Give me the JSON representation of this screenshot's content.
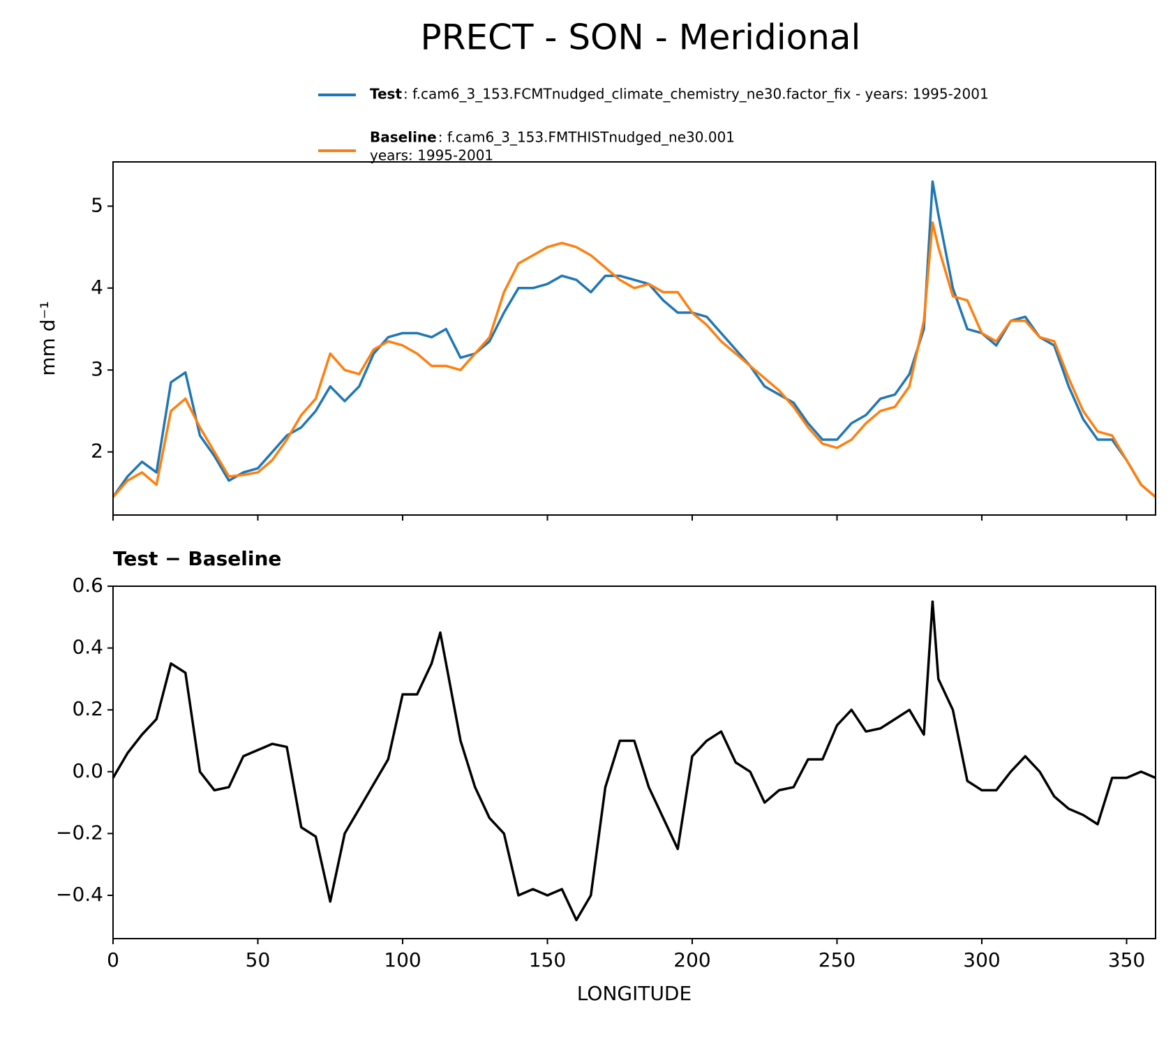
{
  "title": "PRECT - SON - Meridional",
  "chart_data": [
    {
      "type": "line",
      "ylabel": "mm d⁻¹",
      "xlim": [
        0,
        360
      ],
      "xticks": [
        0,
        50,
        100,
        150,
        200,
        250,
        300,
        350
      ],
      "ylim": [
        1.23,
        5.54
      ],
      "yticks": [
        2,
        3,
        4,
        5
      ],
      "legend": "top",
      "x": [
        0,
        5,
        10,
        15,
        20,
        25,
        30,
        35,
        40,
        45,
        50,
        55,
        60,
        65,
        70,
        75,
        80,
        85,
        90,
        95,
        100,
        105,
        110,
        115,
        120,
        125,
        130,
        135,
        140,
        145,
        150,
        155,
        160,
        165,
        170,
        175,
        180,
        185,
        190,
        195,
        200,
        205,
        210,
        215,
        220,
        225,
        230,
        235,
        240,
        245,
        250,
        255,
        260,
        265,
        270,
        275,
        280,
        283,
        285,
        290,
        295,
        300,
        305,
        310,
        315,
        320,
        325,
        330,
        335,
        340,
        345,
        350,
        355,
        360
      ],
      "series": [
        {
          "name": "Test",
          "label": [
            ": f.cam6_3_153.FCMTnudged_climate_chemistry_ne30.factor_fix - years: 1995-2001"
          ],
          "color": "#1f77b4",
          "values": [
            1.45,
            1.7,
            1.88,
            1.75,
            2.85,
            2.97,
            2.2,
            1.95,
            1.65,
            1.75,
            1.8,
            2.0,
            2.2,
            2.3,
            2.5,
            2.8,
            2.62,
            2.8,
            3.2,
            3.4,
            3.45,
            3.45,
            3.4,
            3.5,
            3.15,
            3.2,
            3.35,
            3.7,
            4.0,
            4.0,
            4.05,
            4.15,
            4.1,
            3.95,
            4.15,
            4.15,
            4.1,
            4.05,
            3.85,
            3.7,
            3.7,
            3.65,
            3.45,
            3.25,
            3.05,
            2.8,
            2.7,
            2.6,
            2.35,
            2.15,
            2.15,
            2.35,
            2.45,
            2.65,
            2.7,
            2.95,
            3.5,
            5.3,
            4.9,
            4.0,
            3.5,
            3.45,
            3.3,
            3.6,
            3.65,
            3.4,
            3.3,
            2.8,
            2.4,
            2.15,
            2.15,
            1.9,
            1.6,
            1.45
          ]
        },
        {
          "name": "Baseline",
          "label": [
            ": f.cam6_3_153.FMTHISTnudged_ne30.001",
            "years: 1995-2001"
          ],
          "color": "#ff7f0e",
          "values": [
            1.45,
            1.65,
            1.75,
            1.6,
            2.5,
            2.65,
            2.3,
            2.0,
            1.7,
            1.72,
            1.75,
            1.9,
            2.15,
            2.45,
            2.65,
            3.2,
            3.0,
            2.95,
            3.25,
            3.35,
            3.3,
            3.2,
            3.05,
            3.05,
            3.0,
            3.2,
            3.4,
            3.95,
            4.3,
            4.4,
            4.5,
            4.55,
            4.5,
            4.4,
            4.25,
            4.1,
            4.0,
            4.05,
            3.95,
            3.95,
            3.7,
            3.55,
            3.35,
            3.2,
            3.05,
            2.9,
            2.75,
            2.55,
            2.3,
            2.1,
            2.05,
            2.15,
            2.35,
            2.5,
            2.55,
            2.8,
            3.6,
            4.8,
            4.5,
            3.9,
            3.85,
            3.45,
            3.35,
            3.6,
            3.6,
            3.4,
            3.35,
            2.9,
            2.5,
            2.25,
            2.2,
            1.9,
            1.6,
            1.45
          ]
        }
      ]
    },
    {
      "type": "line",
      "title": "Test − Baseline",
      "xlabel": "LONGITUDE",
      "xlim": [
        0,
        360
      ],
      "xticks": [
        0,
        50,
        100,
        150,
        200,
        250,
        300,
        350
      ],
      "ylim": [
        -0.54,
        0.6
      ],
      "yticks": [
        {
          "value": -0.4,
          "label": "−0.4"
        },
        {
          "value": -0.2,
          "label": "−0.2"
        },
        {
          "value": 0,
          "label": "0.0"
        },
        0.2,
        0.4,
        0.6
      ],
      "x": [
        0,
        5,
        10,
        15,
        20,
        25,
        30,
        35,
        40,
        45,
        50,
        55,
        60,
        65,
        70,
        75,
        80,
        85,
        90,
        95,
        100,
        105,
        110,
        113,
        115,
        120,
        125,
        130,
        135,
        140,
        145,
        150,
        155,
        160,
        165,
        170,
        175,
        180,
        185,
        190,
        195,
        200,
        205,
        210,
        215,
        220,
        225,
        230,
        235,
        240,
        245,
        250,
        255,
        260,
        265,
        270,
        275,
        280,
        283,
        285,
        290,
        295,
        300,
        305,
        310,
        315,
        320,
        325,
        330,
        335,
        340,
        345,
        350,
        355,
        360
      ],
      "series": [
        {
          "name": "Test − Baseline",
          "color": "#000000",
          "values": [
            -0.02,
            0.06,
            0.12,
            0.17,
            0.35,
            0.32,
            0.0,
            -0.06,
            -0.05,
            0.05,
            0.07,
            0.09,
            0.08,
            -0.18,
            -0.21,
            -0.42,
            -0.2,
            -0.12,
            -0.04,
            0.04,
            0.25,
            0.25,
            0.35,
            0.45,
            0.35,
            0.1,
            -0.05,
            -0.15,
            -0.2,
            -0.4,
            -0.38,
            -0.4,
            -0.38,
            -0.48,
            -0.4,
            -0.05,
            0.1,
            0.1,
            -0.05,
            -0.15,
            -0.25,
            0.05,
            0.1,
            0.13,
            0.03,
            0.0,
            -0.1,
            -0.06,
            -0.05,
            0.04,
            0.04,
            0.15,
            0.2,
            0.13,
            0.14,
            0.17,
            0.2,
            0.12,
            0.55,
            0.3,
            0.2,
            -0.03,
            -0.06,
            -0.06,
            0.0,
            0.05,
            0.0,
            -0.08,
            -0.12,
            -0.14,
            -0.17,
            -0.02,
            -0.02,
            0.0,
            -0.02
          ]
        }
      ]
    }
  ]
}
